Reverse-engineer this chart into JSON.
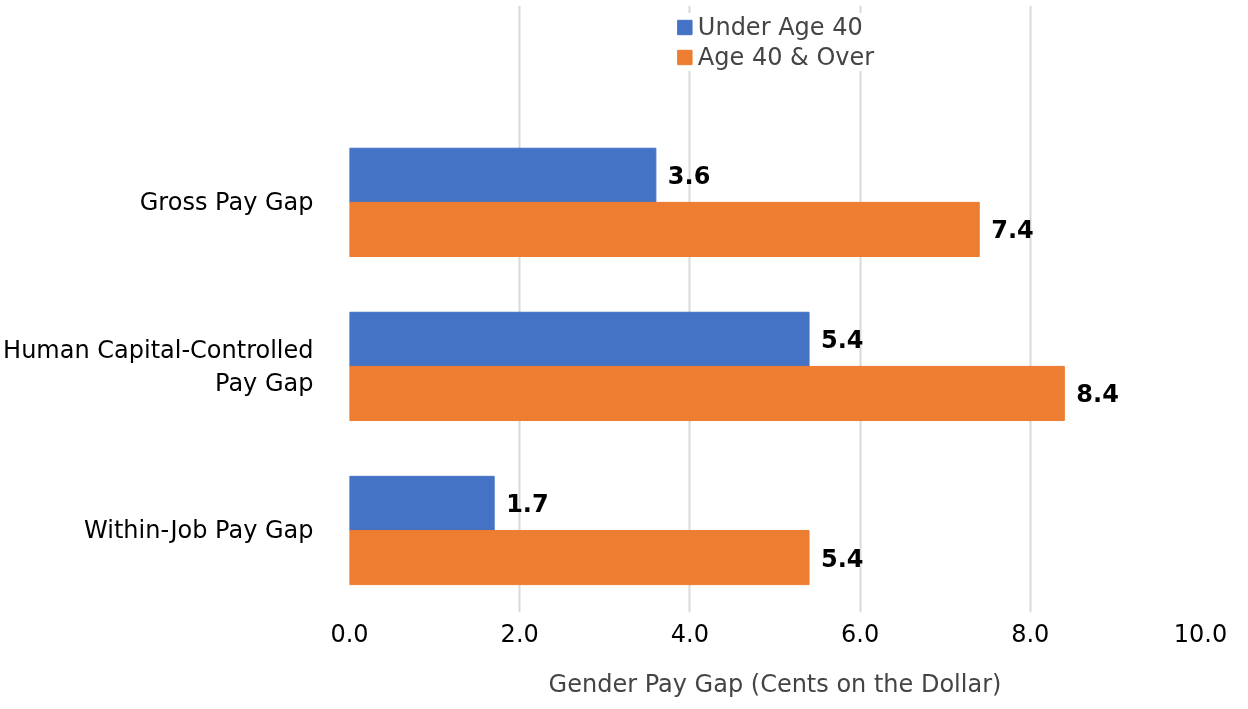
{
  "chart_data": {
    "type": "bar",
    "orientation": "horizontal",
    "xlabel": "Gender Pay Gap (Cents on the Dollar)",
    "categories": [
      "Gross Pay Gap",
      "Human Capital-Controlled Pay Gap",
      "Within-Job Pay Gap"
    ],
    "series": [
      {
        "name": "Under Age 40",
        "color": "#4472c4",
        "values": [
          3.6,
          5.4,
          1.7
        ]
      },
      {
        "name": "Age 40 & Over",
        "color": "#ed7d31",
        "values": [
          7.4,
          8.4,
          5.4
        ]
      }
    ],
    "xlim": [
      0,
      10
    ],
    "xticks": [
      {
        "value": 0,
        "label": "0.0"
      },
      {
        "value": 2,
        "label": "2.0"
      },
      {
        "value": 4,
        "label": "4.0"
      },
      {
        "value": 6,
        "label": "6.0"
      },
      {
        "value": 8,
        "label": "8.0"
      },
      {
        "value": 10,
        "label": "10.0"
      }
    ],
    "grid": "x",
    "legend": "top",
    "data_labels": true
  }
}
